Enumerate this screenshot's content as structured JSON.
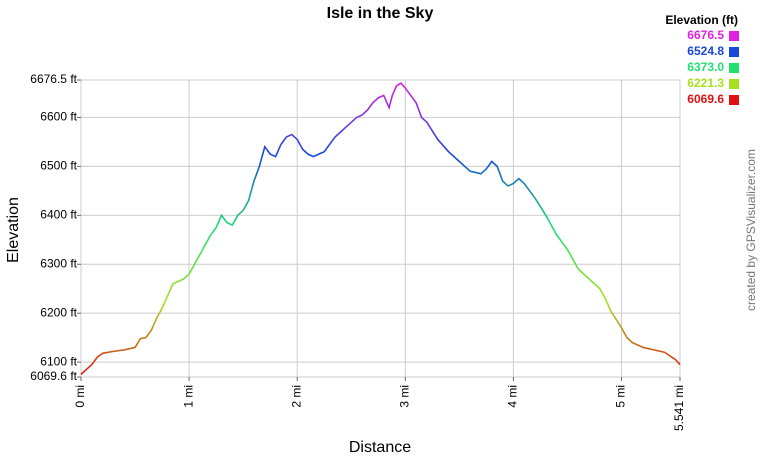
{
  "chart_data": {
    "type": "line",
    "title": "Isle in the Sky",
    "x_label": "Distance",
    "y_label": "Elevation",
    "credit": "created by GPSVisualizer.com",
    "x": [
      0,
      0.05,
      0.1,
      0.15,
      0.2,
      0.3,
      0.4,
      0.5,
      0.55,
      0.6,
      0.65,
      0.7,
      0.75,
      0.8,
      0.85,
      0.9,
      0.95,
      1.0,
      1.05,
      1.1,
      1.15,
      1.2,
      1.25,
      1.3,
      1.35,
      1.4,
      1.45,
      1.5,
      1.55,
      1.6,
      1.65,
      1.7,
      1.75,
      1.8,
      1.85,
      1.9,
      1.95,
      2.0,
      2.05,
      2.1,
      2.15,
      2.2,
      2.25,
      2.3,
      2.35,
      2.4,
      2.45,
      2.5,
      2.55,
      2.6,
      2.65,
      2.7,
      2.75,
      2.8,
      2.85,
      2.88,
      2.92,
      2.96,
      3.0,
      3.05,
      3.1,
      3.15,
      3.2,
      3.3,
      3.4,
      3.5,
      3.6,
      3.7,
      3.75,
      3.8,
      3.85,
      3.9,
      3.95,
      4.0,
      4.05,
      4.1,
      4.2,
      4.3,
      4.35,
      4.4,
      4.5,
      4.55,
      4.6,
      4.7,
      4.8,
      4.85,
      4.9,
      5.0,
      5.05,
      5.1,
      5.2,
      5.3,
      5.4,
      5.5,
      5.541
    ],
    "values": [
      6075,
      6085,
      6095,
      6110,
      6118,
      6122,
      6125,
      6130,
      6148,
      6150,
      6165,
      6190,
      6210,
      6235,
      6260,
      6265,
      6270,
      6280,
      6300,
      6320,
      6340,
      6360,
      6375,
      6400,
      6385,
      6380,
      6400,
      6410,
      6430,
      6470,
      6500,
      6540,
      6525,
      6520,
      6545,
      6560,
      6565,
      6555,
      6535,
      6525,
      6520,
      6525,
      6530,
      6545,
      6560,
      6570,
      6580,
      6590,
      6600,
      6605,
      6615,
      6630,
      6640,
      6645,
      6620,
      6645,
      6665,
      6670,
      6660,
      6645,
      6630,
      6600,
      6590,
      6555,
      6530,
      6510,
      6490,
      6485,
      6495,
      6510,
      6500,
      6470,
      6460,
      6465,
      6475,
      6465,
      6435,
      6400,
      6380,
      6360,
      6330,
      6310,
      6290,
      6270,
      6250,
      6230,
      6205,
      6170,
      6150,
      6140,
      6130,
      6125,
      6120,
      6105,
      6095
    ],
    "xlim": [
      0,
      5.541
    ],
    "xticks": [
      {
        "value": 0,
        "label": "0 mi"
      },
      {
        "value": 1,
        "label": "1 mi"
      },
      {
        "value": 2,
        "label": "2 mi"
      },
      {
        "value": 3,
        "label": "3 mi"
      },
      {
        "value": 4,
        "label": "4 mi"
      },
      {
        "value": 5,
        "label": "5 mi"
      },
      {
        "value": 5.541,
        "label": "5.541 mi"
      }
    ],
    "ylim": [
      6069.6,
      6676.5
    ],
    "yticks": [
      {
        "value": 6069.6,
        "label": "6069.6 ft"
      },
      {
        "value": 6100,
        "label": "6100 ft"
      },
      {
        "value": 6200,
        "label": "6200 ft"
      },
      {
        "value": 6300,
        "label": "6300 ft"
      },
      {
        "value": 6400,
        "label": "6400 ft"
      },
      {
        "value": 6500,
        "label": "6500 ft"
      },
      {
        "value": 6600,
        "label": "6600 ft"
      },
      {
        "value": 6676.5,
        "label": "6676.5 ft"
      }
    ],
    "grid": true,
    "legend": {
      "title": "Elevation (ft)",
      "values": [
        6676.5,
        6524.8,
        6373.0,
        6221.3,
        6069.6
      ],
      "value_labels": [
        "6676.5",
        "6524.8",
        "6373.0",
        "6221.3",
        "6069.6"
      ],
      "colors": [
        "#e020e0",
        "#1848d8",
        "#20e070",
        "#a8e020",
        "#e01010"
      ]
    }
  }
}
